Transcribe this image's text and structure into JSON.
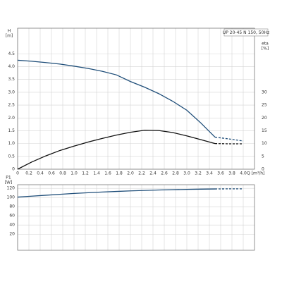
{
  "chart_data": [
    {
      "type": "line",
      "title": "UP 20-45 N 150, 50Hz",
      "y_label": "H",
      "y_unit": "[m]",
      "y2_label": "eta",
      "y2_unit": "[%]",
      "x_label": "Q [m³/h]",
      "xlim": [
        0,
        4.2
      ],
      "xticks": [
        0,
        0.2,
        0.4,
        0.6,
        0.8,
        {
          "value": 1,
          "label": "1.0"
        },
        1.2,
        1.4,
        1.6,
        1.8,
        {
          "value": 2,
          "label": "2.0"
        },
        2.2,
        2.4,
        2.6,
        2.8,
        {
          "value": 3,
          "label": "3.0"
        },
        3.2,
        3.4,
        3.6,
        3.8,
        {
          "value": 4,
          "label": "4.0"
        }
      ],
      "ylim": [
        0,
        5.5
      ],
      "yticks": [
        0,
        0.5,
        {
          "value": 1,
          "label": "1.0"
        },
        1.5,
        {
          "value": 2,
          "label": "2.0"
        },
        2.5,
        {
          "value": 3,
          "label": "3.0"
        },
        3.5,
        {
          "value": 4,
          "label": "4.0"
        },
        4.5
      ],
      "y2lim": [
        0,
        55
      ],
      "y2ticks": [
        0,
        5,
        10,
        15,
        20,
        25,
        30
      ],
      "grid": true,
      "x": [
        0,
        0.25,
        0.5,
        0.75,
        1,
        1.25,
        1.5,
        1.75,
        2,
        2.25,
        2.5,
        2.75,
        3,
        3.25,
        3.5,
        3.75,
        4
      ],
      "series": [
        {
          "color": "#1f4e79",
          "values": [
            4.25,
            4.21,
            4.16,
            4.1,
            4.02,
            3.93,
            3.82,
            3.68,
            3.42,
            3.2,
            2.95,
            2.65,
            2.3,
            1.8,
            1.25,
            null,
            null
          ]
        },
        {
          "color": "#1f4e79",
          "style": "dashed",
          "values": [
            null,
            null,
            null,
            null,
            null,
            null,
            null,
            null,
            null,
            null,
            null,
            null,
            null,
            null,
            1.25,
            1.18,
            1.1
          ]
        },
        {
          "color": "#111111",
          "axis": "y2",
          "values": [
            0,
            2.8,
            5.2,
            7.3,
            9,
            10.6,
            12,
            13.3,
            14.4,
            15.2,
            15.1,
            14.3,
            13,
            11.5,
            10,
            null,
            null
          ]
        },
        {
          "color": "#111111",
          "axis": "y2",
          "style": "dashed",
          "values": [
            null,
            null,
            null,
            null,
            null,
            null,
            null,
            null,
            null,
            null,
            null,
            null,
            null,
            null,
            10,
            9.9,
            9.9
          ]
        }
      ]
    },
    {
      "type": "line",
      "y_label": "P1",
      "y_unit": "[W]",
      "xlim": [
        0,
        4.2
      ],
      "ylim": [
        -15,
        128
      ],
      "yticks": [
        20,
        40,
        60,
        80,
        100,
        120
      ],
      "grid": true,
      "x": [
        0,
        0.25,
        0.5,
        0.75,
        1,
        1.25,
        1.5,
        1.75,
        2,
        2.25,
        2.5,
        2.75,
        3,
        3.25,
        3.5,
        3.75,
        4
      ],
      "series": [
        {
          "color": "#1f4e79",
          "values": [
            101,
            103,
            105,
            107,
            109,
            110.5,
            112,
            113.3,
            114.5,
            115.5,
            116.5,
            117.2,
            117.8,
            118.3,
            118.7,
            null,
            null
          ]
        },
        {
          "color": "#1f4e79",
          "style": "dashed",
          "values": [
            null,
            null,
            null,
            null,
            null,
            null,
            null,
            null,
            null,
            null,
            null,
            null,
            null,
            null,
            118.7,
            119,
            119
          ]
        }
      ]
    }
  ]
}
